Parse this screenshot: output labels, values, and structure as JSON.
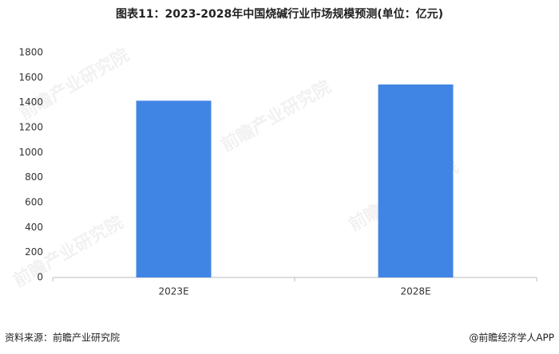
{
  "chart_data": {
    "type": "bar",
    "title": "图表11：2023-2028年中国烧碱行业市场规模预测(单位：亿元)",
    "categories": [
      "2023E",
      "2028E"
    ],
    "values": [
      1415,
      1545
    ],
    "color": "#4185e4",
    "ylim": [
      0,
      1800
    ],
    "yticks": [
      0,
      200,
      400,
      600,
      800,
      1000,
      1200,
      1400,
      1600,
      1800
    ],
    "grid": false,
    "source": "资料来源：前瞻产业研究院",
    "credit": "@前瞻经济学人APP",
    "watermark": "前瞻产业研究院"
  }
}
